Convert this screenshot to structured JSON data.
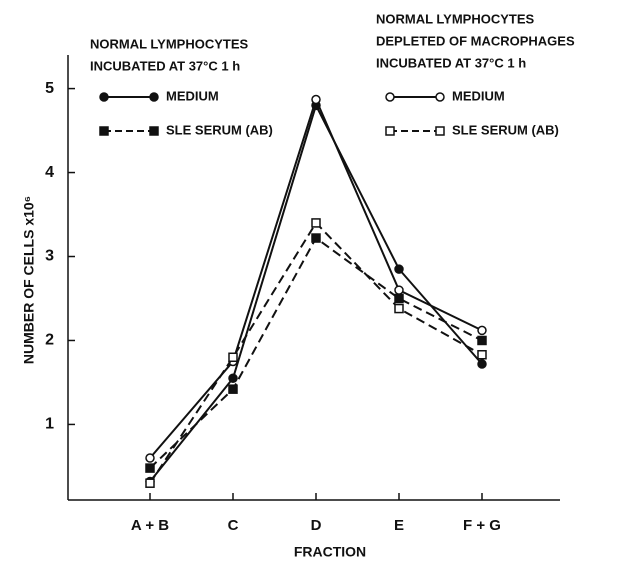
{
  "chart_data": {
    "type": "line",
    "xlabel": "FRACTION",
    "ylabel": "NUMBER OF CELLS x10⁶",
    "categories": [
      "A + B",
      "C",
      "D",
      "E",
      "F + G"
    ],
    "ylim": [
      0.1,
      5.4
    ],
    "yticks": [
      1,
      2,
      3,
      4,
      5
    ],
    "legend_titles": [
      [
        "NORMAL LYMPHOCYTES",
        "INCUBATED AT 37°C 1 h"
      ],
      [
        "NORMAL LYMPHOCYTES",
        "DEPLETED OF MACROPHAGES",
        "INCUBATED AT 37°C 1 h"
      ]
    ],
    "series": [
      {
        "name": "MEDIUM",
        "color": "#111111",
        "marker": "circle",
        "filled": true,
        "dashed": false,
        "legend_group": 0,
        "values": [
          0.32,
          1.55,
          4.8,
          2.85,
          1.72
        ]
      },
      {
        "name": "SLE SERUM (AB)",
        "color": "#111111",
        "marker": "square",
        "filled": true,
        "dashed": true,
        "legend_group": 0,
        "values": [
          0.48,
          1.42,
          3.22,
          2.5,
          2.0
        ]
      },
      {
        "name": "MEDIUM",
        "color": "#111111",
        "marker": "circle",
        "filled": false,
        "dashed": false,
        "legend_group": 1,
        "values": [
          0.6,
          1.75,
          4.87,
          2.6,
          2.12
        ]
      },
      {
        "name": "SLE SERUM (AB)",
        "color": "#111111",
        "marker": "square",
        "filled": false,
        "dashed": true,
        "legend_group": 1,
        "values": [
          0.3,
          1.8,
          3.4,
          2.38,
          1.83
        ]
      }
    ]
  }
}
